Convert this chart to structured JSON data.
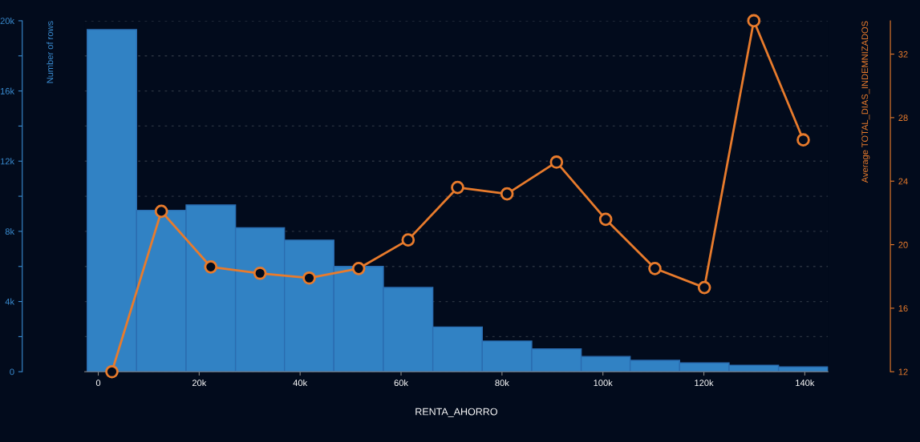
{
  "chart_data": {
    "type": "histogram",
    "xlabel": "RENTA_AHORRO",
    "ylabel": "Number of rows",
    "y2label": "Average TOTAL_DIAS_INDEMNIZADOS",
    "bins": [
      -2200,
      7600,
      17400,
      27200,
      36900,
      46700,
      56500,
      66300,
      76100,
      85900,
      95700,
      105400,
      115200,
      125000,
      134800,
      144600
    ],
    "values": [
      19500,
      9200,
      9500,
      8200,
      7500,
      6000,
      4800,
      2550,
      1750,
      1300,
      870,
      650,
      500,
      370,
      270
    ],
    "color": "#3182c4",
    "series": [
      {
        "type": "line",
        "axis": "y2",
        "color": "#e87b2c",
        "x": [
          2700,
          12500,
          22300,
          32050,
          41800,
          51600,
          61400,
          71200,
          81000,
          90800,
          100550,
          110300,
          120100,
          129900,
          139700
        ],
        "values": [
          12.0,
          22.1,
          18.6,
          18.2,
          17.9,
          18.5,
          20.3,
          23.6,
          23.2,
          25.2,
          21.6,
          18.5,
          17.3,
          34.1,
          26.6
        ]
      }
    ],
    "xlim": [
      -2700,
      144600
    ],
    "xticks": [
      {
        "value": 0,
        "label": "0"
      },
      {
        "value": 20000,
        "label": "20k"
      },
      {
        "value": 40000,
        "label": "40k"
      },
      {
        "value": 60000,
        "label": "60k"
      },
      {
        "value": 80000,
        "label": "80k"
      },
      {
        "value": 100000,
        "label": "100k"
      },
      {
        "value": 120000,
        "label": "120k"
      },
      {
        "value": 140000,
        "label": "140k"
      }
    ],
    "ylim": [
      0,
      20000
    ],
    "yticks": [
      {
        "value": 0,
        "label": "0"
      },
      {
        "value": 2000,
        "label": null
      },
      {
        "value": 4000,
        "label": "4k"
      },
      {
        "value": 6000,
        "label": null
      },
      {
        "value": 8000,
        "label": "8k"
      },
      {
        "value": 10000,
        "label": null
      },
      {
        "value": 12000,
        "label": "12k"
      },
      {
        "value": 14000,
        "label": null
      },
      {
        "value": 16000,
        "label": "16k"
      },
      {
        "value": 18000,
        "label": null
      },
      {
        "value": 20000,
        "label": "20k"
      }
    ],
    "y2lim": [
      12,
      34.1
    ],
    "y2ticks": [
      12,
      16,
      20,
      24,
      28,
      32
    ],
    "grid": "y",
    "marker": "circle",
    "line_style": "solid"
  }
}
